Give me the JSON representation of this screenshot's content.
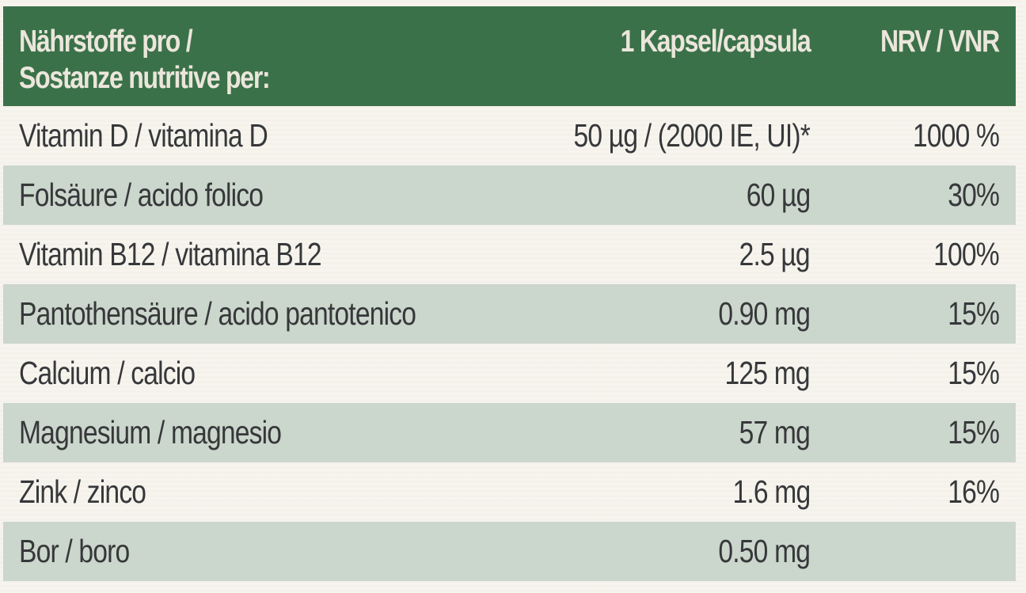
{
  "colors": {
    "header_bg": "#3b7149",
    "header_text": "#ebe6dc",
    "shaded_row": "#cbd6cc",
    "body_text": "#36383a",
    "page_bg": "#f7f4ee"
  },
  "header": {
    "nutrient_line1": "Nährstoffe pro /",
    "nutrient_line2": "Sostanze nutritive per:",
    "amount": "1 Kapsel/capsula",
    "nrv": "NRV / VNR"
  },
  "rows": [
    {
      "name": "Vitamin D / vitamina D",
      "amount": "50 µg / (2000 IE, UI)*",
      "nrv": "1000 %"
    },
    {
      "name": "Folsäure / acido folico",
      "amount": "60 µg",
      "nrv": "30%"
    },
    {
      "name": "Vitamin B12 / vitamina B12",
      "amount": "2.5 µg",
      "nrv": "100%"
    },
    {
      "name": "Pantothensäure / acido pantotenico",
      "amount": "0.90 mg",
      "nrv": "15%"
    },
    {
      "name": "Calcium / calcio",
      "amount": "125 mg",
      "nrv": "15%"
    },
    {
      "name": "Magnesium / magnesio",
      "amount": "57 mg",
      "nrv": "15%"
    },
    {
      "name": "Zink / zinco",
      "amount": "1.6 mg",
      "nrv": "16%"
    },
    {
      "name": "Bor / boro",
      "amount": "0.50 mg",
      "nrv": ""
    }
  ]
}
